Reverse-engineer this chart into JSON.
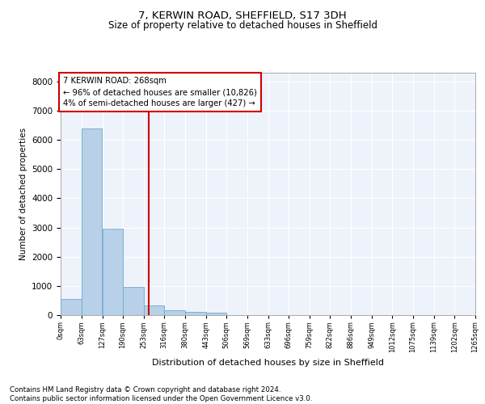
{
  "title_line1": "7, KERWIN ROAD, SHEFFIELD, S17 3DH",
  "title_line2": "Size of property relative to detached houses in Sheffield",
  "xlabel": "Distribution of detached houses by size in Sheffield",
  "ylabel": "Number of detached properties",
  "bar_color": "#b8d0e8",
  "bar_edge_color": "#6aaad4",
  "background_color": "#eef2fa",
  "grid_color": "#ffffff",
  "marker_line_color": "#cc0000",
  "marker_value": 268,
  "annotation_text": "7 KERWIN ROAD: 268sqm\n← 96% of detached houses are smaller (10,826)\n4% of semi-detached houses are larger (427) →",
  "annotation_box_color": "#cc0000",
  "bin_edges": [
    0,
    63,
    127,
    190,
    253,
    316,
    380,
    443,
    506,
    569,
    633,
    696,
    759,
    822,
    886,
    949,
    1012,
    1075,
    1139,
    1202,
    1265
  ],
  "bin_labels": [
    "0sqm",
    "63sqm",
    "127sqm",
    "190sqm",
    "253sqm",
    "316sqm",
    "380sqm",
    "443sqm",
    "506sqm",
    "569sqm",
    "633sqm",
    "696sqm",
    "759sqm",
    "822sqm",
    "886sqm",
    "949sqm",
    "1012sqm",
    "1075sqm",
    "1139sqm",
    "1202sqm",
    "1265sqm"
  ],
  "bar_heights": [
    550,
    6400,
    2950,
    975,
    340,
    165,
    110,
    70,
    0,
    0,
    0,
    0,
    0,
    0,
    0,
    0,
    0,
    0,
    0,
    0
  ],
  "ylim": [
    0,
    8300
  ],
  "yticks": [
    0,
    1000,
    2000,
    3000,
    4000,
    5000,
    6000,
    7000,
    8000
  ],
  "footer_line1": "Contains HM Land Registry data © Crown copyright and database right 2024.",
  "footer_line2": "Contains public sector information licensed under the Open Government Licence v3.0."
}
